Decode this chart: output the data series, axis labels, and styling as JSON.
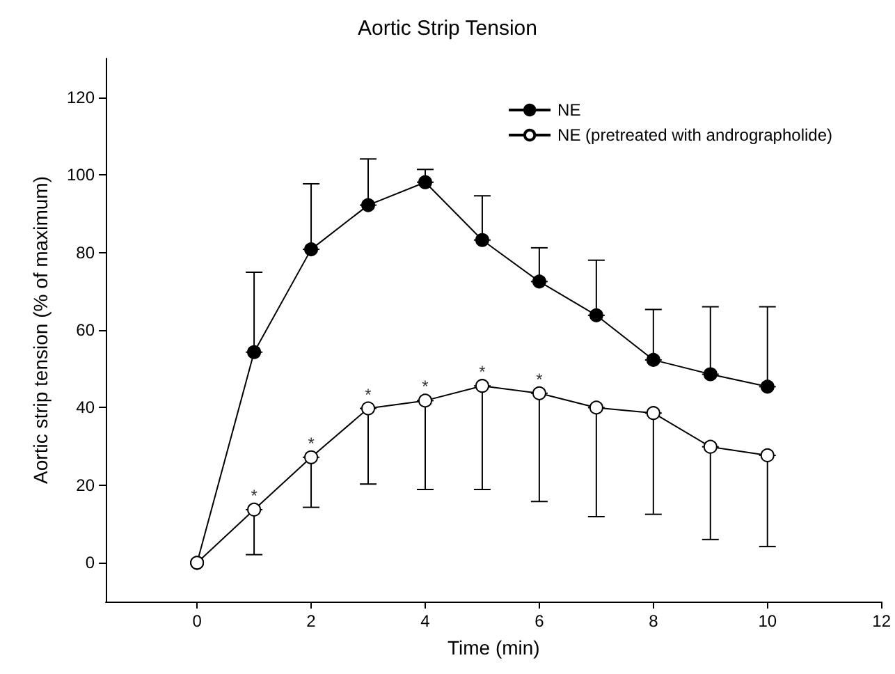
{
  "chart_data": {
    "type": "line",
    "title": "Aortic Strip Tension",
    "xlabel": "Time (min)",
    "ylabel": "Aortic strip tension (% of maximum)",
    "x": [
      0,
      1,
      2,
      3,
      4,
      5,
      6,
      7,
      8,
      9,
      10
    ],
    "series": [
      {
        "name": "NE",
        "color": "#000000",
        "values": [
          0,
          54.3,
          80.8,
          92.2,
          98.1,
          83.2,
          72.5,
          63.8,
          52.3,
          48.6,
          45.4
        ],
        "errors": [
          null,
          [
            54.3,
            74.9
          ],
          [
            80.8,
            97.7
          ],
          [
            92.2,
            104.1
          ],
          [
            98.1,
            101.4
          ],
          [
            83.2,
            94.6
          ],
          [
            72.5,
            81.2
          ],
          [
            63.8,
            78
          ],
          [
            52.3,
            65.3
          ],
          [
            48.6,
            66
          ],
          [
            45.4,
            66
          ]
        ]
      },
      {
        "name": "NE (pretreated with andrographolide)",
        "color": "#ffffff",
        "values": [
          0,
          13.7,
          27.2,
          39.8,
          41.8,
          45.6,
          43.7,
          40,
          38.6,
          29.9,
          27.7
        ],
        "errors": [
          null,
          [
            2.1,
            13.7
          ],
          [
            14.3,
            27.2
          ],
          [
            20.3,
            39.8
          ],
          [
            18.9,
            41.8
          ],
          [
            18.9,
            45.6
          ],
          [
            15.8,
            43.7
          ],
          [
            11.9,
            40
          ],
          [
            12.5,
            38.6
          ],
          [
            6,
            29.9
          ],
          [
            4.2,
            27.7
          ]
        ]
      }
    ],
    "annotations": [
      {
        "text": "*",
        "x": 1,
        "y": 13.7
      },
      {
        "text": "*",
        "x": 2,
        "y": 27.2
      },
      {
        "text": "*",
        "x": 3,
        "y": 39.8
      },
      {
        "text": "*",
        "x": 4,
        "y": 41.8
      },
      {
        "text": "*",
        "x": 5,
        "y": 45.6
      },
      {
        "text": "*",
        "x": 6,
        "y": 43.7
      }
    ],
    "xlim": [
      -1.6,
      12
    ],
    "xticks": [
      0,
      2,
      4,
      6,
      8,
      10,
      12
    ],
    "ylim": [
      -10,
      130
    ],
    "yticks": [
      0,
      20,
      40,
      60,
      80,
      100,
      120
    ],
    "grid": false,
    "legend": "top right",
    "marker": "circle",
    "line_style": "solid"
  }
}
